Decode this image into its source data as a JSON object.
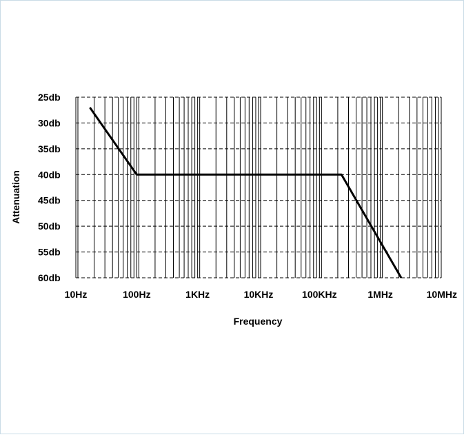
{
  "chart_data": {
    "type": "line",
    "title": "",
    "xlabel": "Frequency",
    "ylabel": "Attenuation",
    "x_scale": "log",
    "x_range_hz": [
      10,
      10000000
    ],
    "x_ticks_hz": [
      10,
      100,
      1000,
      10000,
      100000,
      1000000,
      10000000
    ],
    "x_tick_labels": [
      "10Hz",
      "100Hz",
      "1KHz",
      "10KHz",
      "100KHz",
      "1MHz",
      "10MHz"
    ],
    "y_range_db": [
      25,
      60
    ],
    "y_inverted": true,
    "y_ticks_db": [
      25,
      30,
      35,
      40,
      45,
      50,
      55,
      60
    ],
    "y_tick_labels": [
      "25db",
      "30db",
      "35db",
      "40db",
      "45db",
      "50db",
      "55db",
      "60db"
    ],
    "grid": true,
    "series": [
      {
        "points": [
          {
            "x": 17,
            "y": 27
          },
          {
            "x": 100,
            "y": 40
          },
          {
            "x": 230000,
            "y": 40
          },
          {
            "x": 2200000,
            "y": 60
          }
        ]
      }
    ]
  }
}
